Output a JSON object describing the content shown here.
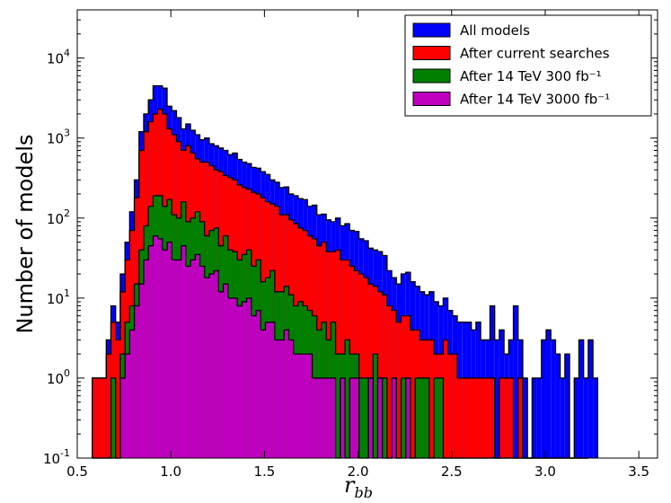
{
  "chart_data": {
    "type": "histogram",
    "title": "",
    "xlabel": "r",
    "xlabel_subscript": "bb",
    "ylabel": "Number of models",
    "xlim": [
      0.5,
      3.6
    ],
    "ylim": [
      0.1,
      40000
    ],
    "yscale": "log",
    "grid": false,
    "legend_position": "top-right",
    "bin_start": 0.58,
    "bin_width": 0.025,
    "x_ticks": [
      "0.5",
      "1.0",
      "1.5",
      "2.0",
      "2.5",
      "3.0",
      "3.5"
    ],
    "x_tick_values": [
      0.5,
      1.0,
      1.5,
      2.0,
      2.5,
      3.0,
      3.5
    ],
    "y_ticks": [
      {
        "value": 0.1,
        "base": "10",
        "exp": "-1"
      },
      {
        "value": 1,
        "base": "10",
        "exp": "0"
      },
      {
        "value": 10,
        "base": "10",
        "exp": "1"
      },
      {
        "value": 100,
        "base": "10",
        "exp": "2"
      },
      {
        "value": 1000,
        "base": "10",
        "exp": "3"
      },
      {
        "value": 10000,
        "base": "10",
        "exp": "4"
      }
    ],
    "series": [
      {
        "name": "All models",
        "color": "#0000ff",
        "values": [
          1,
          1,
          1,
          3,
          8,
          5,
          20,
          50,
          120,
          300,
          1200,
          2000,
          3000,
          4500,
          4500,
          4200,
          2500,
          2200,
          1800,
          1300,
          1500,
          1250,
          1100,
          950,
          1000,
          850,
          800,
          750,
          700,
          620,
          650,
          540,
          500,
          480,
          430,
          420,
          380,
          350,
          300,
          280,
          240,
          245,
          200,
          190,
          175,
          170,
          140,
          145,
          110,
          112,
          95,
          90,
          100,
          80,
          85,
          70,
          68,
          55,
          52,
          42,
          40,
          38,
          34,
          22,
          18,
          15,
          20,
          21,
          16,
          14,
          12,
          11,
          12,
          9,
          8,
          10,
          7,
          6,
          5,
          5,
          5,
          4,
          5,
          3,
          3,
          8,
          3,
          4,
          2,
          3,
          8,
          3,
          1,
          0.1,
          1,
          1,
          3,
          4,
          3,
          2,
          1,
          2,
          0.1,
          1,
          3,
          1,
          3,
          1
        ]
      },
      {
        "name": "After current searches",
        "color": "#ff0000",
        "values": [
          1,
          1,
          1,
          2,
          5,
          3,
          12,
          30,
          70,
          180,
          700,
          1200,
          1600,
          2000,
          2300,
          2000,
          1300,
          1100,
          900,
          700,
          800,
          650,
          550,
          500,
          500,
          450,
          400,
          380,
          340,
          320,
          300,
          260,
          240,
          230,
          210,
          200,
          180,
          160,
          150,
          140,
          110,
          110,
          95,
          85,
          75,
          70,
          60,
          55,
          45,
          50,
          38,
          38,
          40,
          30,
          30,
          25,
          22,
          20,
          18,
          15,
          14,
          12,
          11,
          8,
          7,
          5,
          6,
          6,
          4,
          4,
          3,
          3,
          3,
          2,
          2,
          3,
          2,
          2,
          1,
          1,
          1,
          1,
          1,
          1,
          1,
          1,
          0.1,
          1,
          1,
          1,
          0.1,
          1,
          0.1,
          0.1,
          0.1,
          0.1,
          0.1,
          0.1,
          0.1,
          0.1,
          0.1,
          0.1,
          0.1,
          0.1,
          0.1,
          0.1
        ]
      },
      {
        "name": "After 14 TeV 300 fb⁻¹",
        "color": "#008000",
        "values": [
          0.1,
          0.1,
          0.1,
          0.1,
          1,
          0.1,
          2,
          5,
          8,
          15,
          40,
          80,
          140,
          190,
          190,
          140,
          170,
          110,
          100,
          160,
          90,
          100,
          120,
          90,
          60,
          70,
          75,
          45,
          60,
          40,
          38,
          30,
          35,
          40,
          25,
          30,
          16,
          18,
          22,
          12,
          12,
          14,
          11,
          8,
          9,
          8,
          7,
          6,
          4,
          5,
          3,
          5,
          2,
          2,
          3,
          2,
          2,
          1,
          1,
          1,
          2,
          1,
          1,
          0.1,
          1,
          0.1,
          1,
          1,
          0.1,
          1,
          1,
          1,
          0.1,
          1,
          1,
          0.1,
          0.1,
          0.1,
          0.1,
          0.1,
          0.1,
          0.1,
          0.1,
          0.1,
          0.1,
          0.1,
          0.1,
          0.1,
          0.1,
          0.1,
          0.1,
          0.1,
          0.1,
          0.1,
          0.1,
          0.1,
          0.1,
          0.1,
          0.1,
          0.1,
          0.1,
          0.1,
          0.1,
          0.1,
          0.1,
          0.1
        ]
      },
      {
        "name": "After 14 TeV 3000 fb⁻¹",
        "color": "#bf00bf",
        "values": [
          0.1,
          0.1,
          0.1,
          0.1,
          0.1,
          0.1,
          1,
          2,
          4,
          8,
          15,
          30,
          45,
          60,
          55,
          40,
          50,
          30,
          30,
          45,
          25,
          30,
          35,
          25,
          18,
          20,
          22,
          12,
          15,
          10,
          10,
          8,
          9,
          10,
          6,
          7,
          4,
          5,
          5,
          3,
          3,
          4,
          3,
          2,
          2,
          2,
          2,
          1,
          1,
          1,
          1,
          1,
          0.1,
          1,
          0.1,
          1,
          1,
          0.1,
          0.1,
          1,
          0.1,
          1,
          0.1,
          0.1,
          1,
          0.1,
          0.1,
          1,
          0.1,
          0.1,
          0.1,
          0.1,
          0.1,
          0.1,
          0.1,
          0.1,
          0.1,
          0.1,
          0.1,
          0.1,
          0.1,
          0.1,
          0.1,
          0.1,
          0.1,
          0.1,
          0.1,
          0.1,
          0.1,
          0.1,
          0.1,
          0.1,
          0.1,
          0.1,
          0.1,
          0.1,
          0.1,
          0.1,
          0.1,
          0.1,
          0.1,
          0.1,
          0.1,
          0.1,
          0.1,
          0.1
        ]
      }
    ]
  }
}
